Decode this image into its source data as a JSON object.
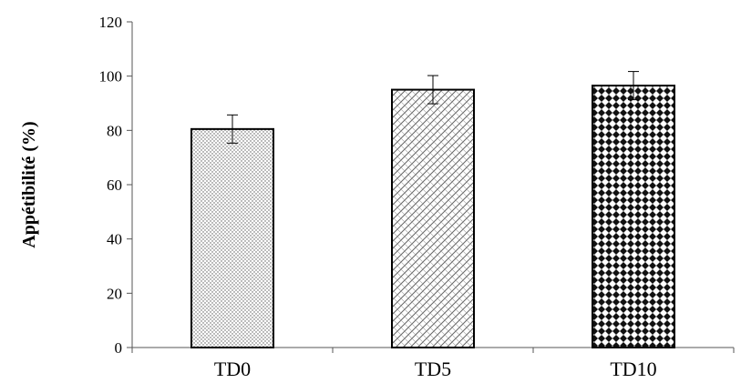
{
  "chart_data": {
    "type": "bar",
    "title": "",
    "xlabel": "",
    "ylabel": "Appétibilité (%)",
    "ylim": [
      0,
      120
    ],
    "yticks": [
      0,
      20,
      40,
      60,
      80,
      100,
      120
    ],
    "categories": [
      "TD0",
      "TD5",
      "TD10"
    ],
    "values": [
      80.5,
      95,
      96.5
    ],
    "errors": [
      5.2,
      5.2,
      5.2
    ],
    "patterns": [
      "fine-dots",
      "diagonal-hatch",
      "checker-diamond"
    ],
    "grid": false,
    "legend": "none",
    "bar_fill_color": "#ffffff",
    "bar_edge_color": "#000000"
  }
}
